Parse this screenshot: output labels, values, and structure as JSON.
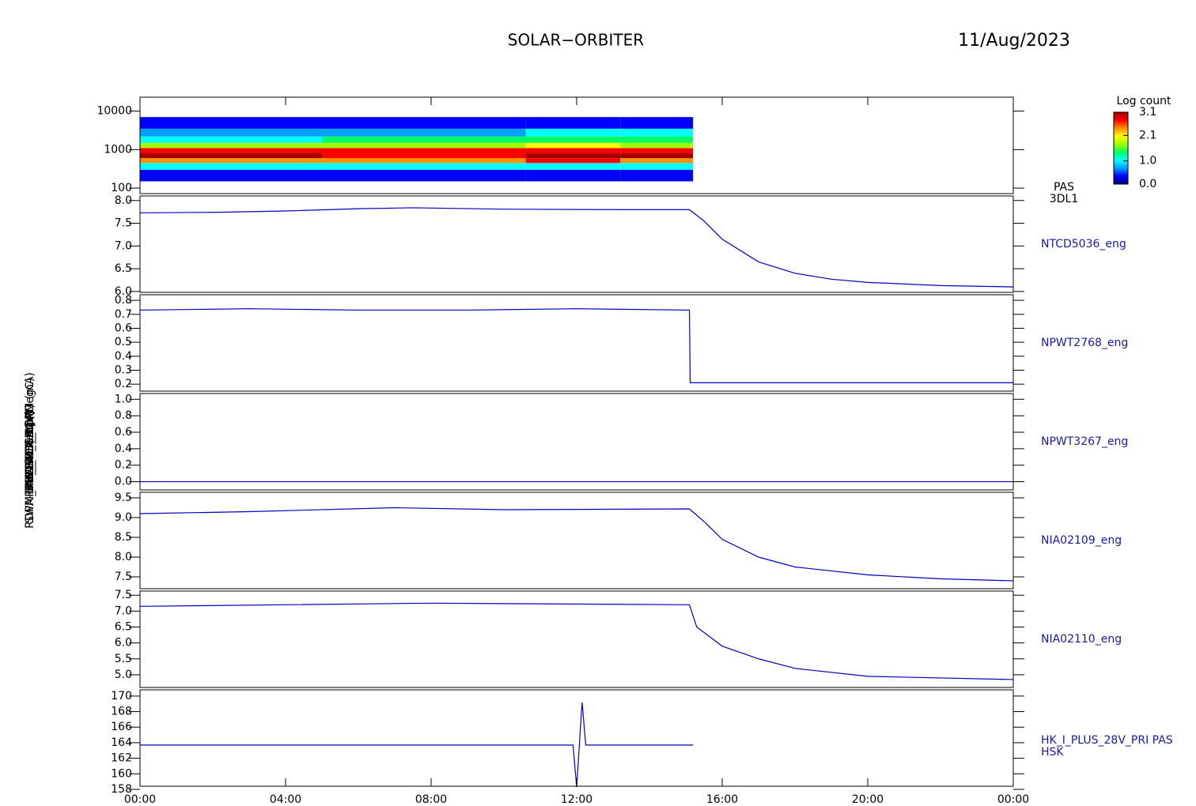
{
  "title": "SOLAR−ORBITER",
  "date": "11/Aug/2023",
  "xaxis": {
    "xlim": [
      0,
      24
    ],
    "xticks": [
      {
        "value": 0,
        "label": "00:00"
      },
      {
        "value": 4,
        "label": "04:00"
      },
      {
        "value": 8,
        "label": "08:00"
      },
      {
        "value": 12,
        "label": "12:00"
      },
      {
        "value": 16,
        "label": "16:00"
      },
      {
        "value": 20,
        "label": "20:00"
      },
      {
        "value": 24,
        "label": "00:00"
      }
    ]
  },
  "chart_data": [
    {
      "type": "heatmap",
      "ylabel": "PAS E (eV)",
      "label": [
        "PAS",
        "3DL1"
      ],
      "log_y": true,
      "ylim": [
        72,
        23000
      ],
      "yticks": [
        100,
        1000,
        10000
      ],
      "x_edges": [
        0,
        5,
        10.6,
        13.2,
        15.2
      ],
      "y_edges": [
        150,
        300,
        450,
        600,
        800,
        1100,
        1500,
        2200,
        3500,
        7000
      ],
      "z": [
        [
          0.3,
          1.0,
          2.4,
          3.0,
          2.6,
          1.7,
          1.2,
          0.7,
          0.3
        ],
        [
          0.3,
          1.0,
          2.3,
          2.9,
          2.6,
          1.8,
          1.3,
          0.8,
          0.3
        ],
        [
          0.3,
          1.1,
          2.6,
          3.1,
          2.8,
          2.0,
          1.5,
          1.0,
          0.3
        ],
        [
          0.3,
          1.0,
          2.4,
          3.0,
          2.6,
          1.8,
          1.3,
          0.9,
          0.3
        ]
      ],
      "colorbar": {
        "title": "Log count",
        "zlim": [
          0,
          3.1
        ],
        "ticks": [
          {
            "value": 0,
            "label": "0.0"
          },
          {
            "value": 1,
            "label": "1.0"
          },
          2.1,
          3.1
        ]
      },
      "colormap": [
        "#000080",
        "#0000ff",
        "#00a0ff",
        "#00ffff",
        "#00ff60",
        "#a0ff00",
        "#ffff00",
        "#ff9000",
        "#ff0000",
        "#a00000"
      ]
    },
    {
      "type": "line",
      "ylabel": "SWA-EAS Elx Temp (DegC)",
      "label": [
        "NTCD5036_eng"
      ],
      "ylim": [
        5.98,
        8.1
      ],
      "yticks": [
        {
          "value": 6,
          "label": "6.0"
        },
        6.5,
        {
          "value": 7,
          "label": "7.0"
        },
        7.5,
        {
          "value": 8,
          "label": "8.0"
        }
      ],
      "x": [
        0,
        2,
        4,
        6,
        7.5,
        10,
        13,
        15.1,
        15.5,
        16,
        17,
        18,
        19,
        20,
        22,
        24
      ],
      "series": [
        {
          "color": "#0000c0",
          "values": [
            7.73,
            7.74,
            7.77,
            7.82,
            7.84,
            7.81,
            7.8,
            7.8,
            7.55,
            7.15,
            6.65,
            6.4,
            6.27,
            6.2,
            6.13,
            6.1
          ]
        }
      ]
    },
    {
      "type": "line",
      "ylabel": "RPW_TDS_5V (V)",
      "label": [
        "NPWT2768_eng"
      ],
      "ylim": [
        0.15,
        0.84
      ],
      "yticks": [
        0.2,
        0.3,
        0.4,
        0.5,
        0.6,
        0.7,
        0.8
      ],
      "x": [
        0,
        3,
        6,
        9,
        12,
        15.1,
        15.12,
        24
      ],
      "series": [
        {
          "color": "#0000c0",
          "values": [
            0.73,
            0.74,
            0.73,
            0.73,
            0.74,
            0.73,
            0.21,
            0.21
          ]
        }
      ]
    },
    {
      "type": "line",
      "ylabel": "RPW_TDS_I (A)",
      "label": [
        "NPWT3267_eng"
      ],
      "ylim": [
        -0.1,
        1.07
      ],
      "yticks": [
        {
          "value": 0,
          "label": "0.0"
        },
        0.2,
        0.4,
        0.6,
        0.8,
        {
          "value": 1,
          "label": "1.0"
        }
      ],
      "x": [
        0,
        24
      ],
      "series": [
        {
          "color": "#0000c0",
          "values": [
            0,
            0
          ]
        }
      ]
    },
    {
      "type": "line",
      "ylabel": "THERM_CA (V)",
      "label": [
        "NIA02109_eng"
      ],
      "ylim": [
        7.2,
        9.64
      ],
      "yticks": [
        7.5,
        {
          "value": 8,
          "label": "8.0"
        },
        8.5,
        {
          "value": 9,
          "label": "9.0"
        },
        9.5
      ],
      "x": [
        0,
        3,
        7,
        10,
        15.1,
        15.5,
        16,
        17,
        18,
        20,
        22,
        24
      ],
      "series": [
        {
          "color": "#0000c0",
          "values": [
            9.1,
            9.15,
            9.25,
            9.2,
            9.22,
            8.9,
            8.45,
            8.0,
            7.75,
            7.55,
            7.45,
            7.4
          ]
        }
      ]
    },
    {
      "type": "line",
      "ylabel": "THERM_CB (V)",
      "label": [
        "NIA02110_eng"
      ],
      "ylim": [
        4.6,
        7.63
      ],
      "yticks": [
        {
          "value": 5,
          "label": "5.0"
        },
        5.5,
        {
          "value": 6,
          "label": "6.0"
        },
        6.5,
        {
          "value": 7,
          "label": "7.0"
        },
        7.5
      ],
      "x": [
        0,
        4,
        8,
        15.1,
        15.3,
        16,
        17,
        18,
        20,
        24
      ],
      "series": [
        {
          "color": "#0000c0",
          "values": [
            7.15,
            7.2,
            7.25,
            7.2,
            6.5,
            5.9,
            5.5,
            5.2,
            4.95,
            4.85
          ]
        }
      ]
    },
    {
      "type": "line",
      "ylabel": "RDPM_HK_IMON_PDPM (mA)",
      "label": [
        "HK_I_PLUS_28V_PRI PAS",
        "HSK"
      ],
      "ylim": [
        158.4,
        170.8
      ],
      "yticks": [
        158,
        160,
        162,
        164,
        166,
        168,
        170
      ],
      "x": [
        0,
        6,
        11.9,
        12,
        12.15,
        12.25,
        15.2
      ],
      "series": [
        {
          "color": "#0000c0",
          "values": [
            163.7,
            163.7,
            163.7,
            158.3,
            169.2,
            163.7,
            163.7
          ]
        }
      ]
    }
  ]
}
